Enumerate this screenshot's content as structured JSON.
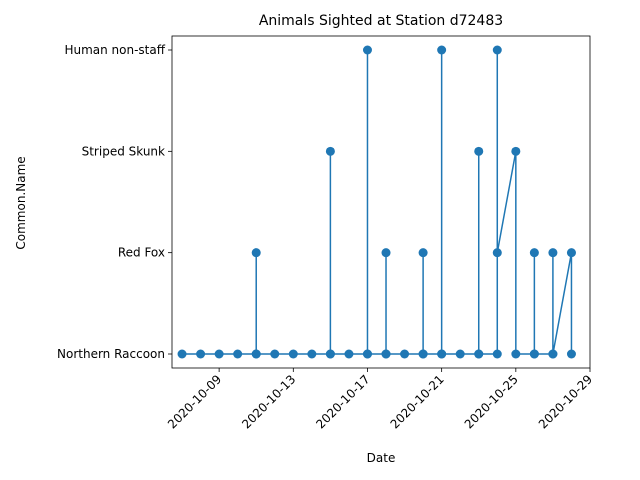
{
  "chart_data": {
    "type": "line",
    "title": "Animals Sighted at Station d72483",
    "xlabel": "Date",
    "ylabel": "Common.Name",
    "y_categories": [
      "Northern Raccoon",
      "Red Fox",
      "Striped Skunk",
      "Human non-staff"
    ],
    "x_ticks": [
      "2020-10-09",
      "2020-10-13",
      "2020-10-17",
      "2020-10-21",
      "2020-10-25",
      "2020-10-29"
    ],
    "xlim": [
      "2020-10-06 11:00",
      "2020-10-29 00:00"
    ],
    "grid": false,
    "legend": "none",
    "color": "#1f77b4",
    "points": [
      {
        "x": "2020-10-07",
        "y": "Northern Raccoon"
      },
      {
        "x": "2020-10-08",
        "y": "Northern Raccoon"
      },
      {
        "x": "2020-10-09",
        "y": "Northern Raccoon"
      },
      {
        "x": "2020-10-10",
        "y": "Northern Raccoon"
      },
      {
        "x": "2020-10-11",
        "y": "Northern Raccoon"
      },
      {
        "x": "2020-10-11",
        "y": "Red Fox"
      },
      {
        "x": "2020-10-11",
        "y": "Northern Raccoon"
      },
      {
        "x": "2020-10-12",
        "y": "Northern Raccoon"
      },
      {
        "x": "2020-10-13",
        "y": "Northern Raccoon"
      },
      {
        "x": "2020-10-14",
        "y": "Northern Raccoon"
      },
      {
        "x": "2020-10-15",
        "y": "Northern Raccoon"
      },
      {
        "x": "2020-10-15",
        "y": "Striped Skunk"
      },
      {
        "x": "2020-10-15",
        "y": "Northern Raccoon"
      },
      {
        "x": "2020-10-16",
        "y": "Northern Raccoon"
      },
      {
        "x": "2020-10-17",
        "y": "Northern Raccoon"
      },
      {
        "x": "2020-10-17",
        "y": "Human non-staff"
      },
      {
        "x": "2020-10-17",
        "y": "Northern Raccoon"
      },
      {
        "x": "2020-10-18",
        "y": "Northern Raccoon"
      },
      {
        "x": "2020-10-18",
        "y": "Red Fox"
      },
      {
        "x": "2020-10-18",
        "y": "Northern Raccoon"
      },
      {
        "x": "2020-10-19",
        "y": "Northern Raccoon"
      },
      {
        "x": "2020-10-20",
        "y": "Northern Raccoon"
      },
      {
        "x": "2020-10-20",
        "y": "Red Fox"
      },
      {
        "x": "2020-10-20",
        "y": "Northern Raccoon"
      },
      {
        "x": "2020-10-21",
        "y": "Northern Raccoon"
      },
      {
        "x": "2020-10-21",
        "y": "Human non-staff"
      },
      {
        "x": "2020-10-21",
        "y": "Northern Raccoon"
      },
      {
        "x": "2020-10-22",
        "y": "Northern Raccoon"
      },
      {
        "x": "2020-10-23",
        "y": "Northern Raccoon"
      },
      {
        "x": "2020-10-23",
        "y": "Striped Skunk"
      },
      {
        "x": "2020-10-23",
        "y": "Northern Raccoon"
      },
      {
        "x": "2020-10-24",
        "y": "Northern Raccoon"
      },
      {
        "x": "2020-10-24",
        "y": "Human non-staff"
      },
      {
        "x": "2020-10-24",
        "y": "Red Fox"
      },
      {
        "x": "2020-10-25",
        "y": "Striped Skunk"
      },
      {
        "x": "2020-10-25",
        "y": "Northern Raccoon"
      },
      {
        "x": "2020-10-26",
        "y": "Northern Raccoon"
      },
      {
        "x": "2020-10-26",
        "y": "Red Fox"
      },
      {
        "x": "2020-10-26",
        "y": "Northern Raccoon"
      },
      {
        "x": "2020-10-27",
        "y": "Northern Raccoon"
      },
      {
        "x": "2020-10-27",
        "y": "Red Fox"
      },
      {
        "x": "2020-10-27",
        "y": "Northern Raccoon"
      },
      {
        "x": "2020-10-28",
        "y": "Red Fox"
      },
      {
        "x": "2020-10-28",
        "y": "Northern Raccoon"
      }
    ]
  }
}
